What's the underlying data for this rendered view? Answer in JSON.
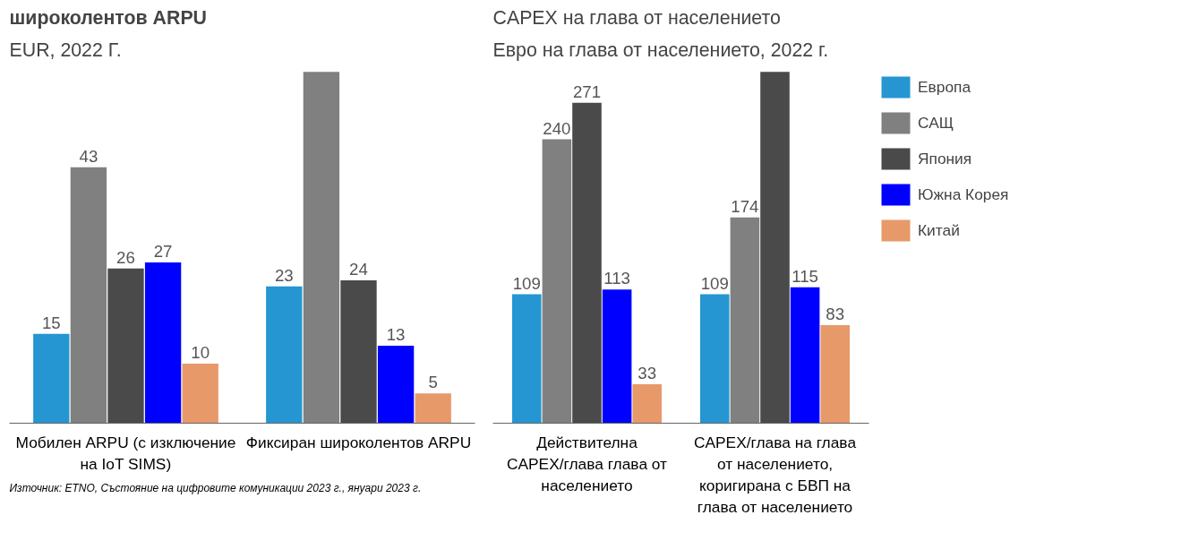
{
  "chart_data": [
    {
      "type": "bar",
      "title": "широколентов ARPU",
      "subtitle": "EUR, 2022 Г.",
      "categories": [
        "Мобилен ARPU (с изключение на IoT SIMS)",
        "Фиксиран широколентов ARPU"
      ],
      "legend": false,
      "grid": false,
      "series": [
        {
          "color": "#2596d1",
          "values": [
            15,
            23
          ],
          "value_labels": [
            "15",
            "23"
          ]
        },
        {
          "color": "#808080",
          "values": [
            43,
            59
          ],
          "value_labels": [
            "43",
            null
          ]
        },
        {
          "color": "#4a4a4a",
          "values": [
            26,
            24
          ],
          "value_labels": [
            "26",
            "24"
          ]
        },
        {
          "color": "#0000ff",
          "values": [
            27,
            13
          ],
          "value_labels": [
            "27",
            "13"
          ]
        },
        {
          "color": "#e8996a",
          "values": [
            10,
            5
          ],
          "value_labels": [
            "10",
            "5"
          ]
        }
      ],
      "annotations": [
        "Източник: ETNO, Състояние на цифровите комуникации 2023 г., януари 2023 г."
      ]
    },
    {
      "type": "bar",
      "title": "CAPEX на глава от населението",
      "subtitle": "Евро на глава от населението, 2022 г.",
      "categories": [
        "Действителна CAPEX/глава глава от населението",
        "CAPEX/глава на глава от населението, коригирана с БВП на глава от населението"
      ],
      "legend": "right",
      "grid": false,
      "series": [
        {
          "name": "Европа",
          "color": "#2596d1",
          "values": [
            109,
            109
          ],
          "value_labels": [
            "109",
            "109"
          ]
        },
        {
          "name": "САЩ",
          "color": "#808080",
          "values": [
            240,
            174
          ],
          "value_labels": [
            "240",
            "174"
          ]
        },
        {
          "name": "Япония",
          "color": "#4a4a4a",
          "values": [
            271,
            297
          ],
          "value_labels": [
            "271",
            null
          ]
        },
        {
          "name": "Южна Корея",
          "color": "#0000ff",
          "values": [
            113,
            115
          ],
          "value_labels": [
            "113",
            "115"
          ]
        },
        {
          "name": "Китай",
          "color": "#e8996a",
          "values": [
            33,
            83
          ],
          "value_labels": [
            "33",
            "83"
          ]
        }
      ]
    }
  ]
}
